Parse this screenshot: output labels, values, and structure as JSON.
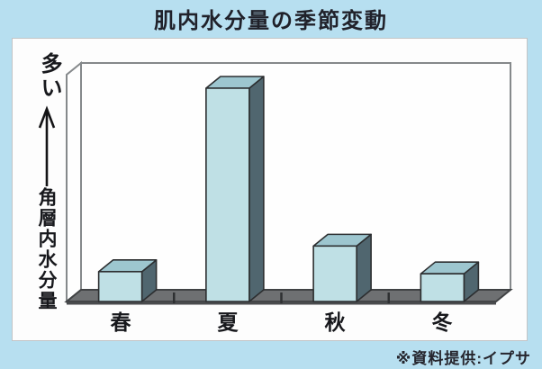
{
  "title": "肌内水分量の季節変動",
  "y_axis": {
    "top_label": "多い",
    "arrow_direction": "up",
    "bottom_label": "角層内水分量"
  },
  "footer": {
    "source_note": "※資料提供:イプサ"
  },
  "chart_data": {
    "type": "bar",
    "style": "3d",
    "title": "肌内水分量の季節変動",
    "categories": [
      "春",
      "夏",
      "秋",
      "冬"
    ],
    "values": [
      14,
      100,
      26,
      13
    ],
    "values_note": "relative heights estimated from pixels; no numeric axis shown",
    "xlabel": "",
    "ylabel": "角層内水分量（多い↑）",
    "ylim": [
      0,
      105
    ],
    "grid": false,
    "legend": false,
    "colors": {
      "bar_front": "#bfe0e5",
      "bar_top": "#9dc6cf",
      "bar_side": "#50666f",
      "bar_outline": "#2c2e30",
      "floor": "#6e7072",
      "floor_outline": "#404244",
      "wall": "#fefefe",
      "frame_stroke": "#85898b",
      "background": "#b7dff0",
      "panel": "#fdfdfd"
    }
  }
}
